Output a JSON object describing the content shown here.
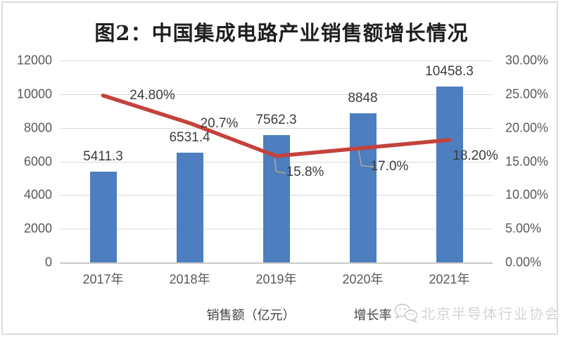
{
  "title": "图2：中国集成电路产业销售额增长情况",
  "chart_data": {
    "type": "bar",
    "title": "图2：中国集成电路产业销售额增长情况",
    "categories": [
      "2017年",
      "2018年",
      "2019年",
      "2020年",
      "2021年"
    ],
    "series": [
      {
        "name": "销售额（亿元）",
        "type": "bar",
        "color": "#4d7ebf",
        "values": [
          5411.3,
          6531.4,
          7562.3,
          8848,
          10458.3
        ],
        "labels": [
          "5411.3",
          "6531.4",
          "7562.3",
          "8848",
          "10458.3"
        ]
      },
      {
        "name": "增长率",
        "type": "line",
        "color": "#c4423c",
        "values": [
          24.8,
          20.7,
          15.8,
          17.0,
          18.2
        ],
        "labels": [
          "24.80%",
          "20.7%",
          "15.8%",
          "17.0%",
          "18.20%"
        ]
      }
    ],
    "left_axis": {
      "min": 0,
      "max": 12000,
      "ticks": [
        "12000",
        "10000",
        "8000",
        "6000",
        "4000",
        "2000",
        "0"
      ]
    },
    "right_axis": {
      "min": 0,
      "max": 30,
      "ticks": [
        "30.00%",
        "25.00%",
        "20.00%",
        "15.00%",
        "10.00%",
        "5.00%",
        "0.00%"
      ]
    },
    "grid": true,
    "legend_position": "bottom"
  },
  "legend": {
    "bar_label": "销售额（亿元）",
    "line_label": "增长率"
  },
  "watermark": {
    "label": "北京半导体行业协会",
    "icon": "wechat-icon"
  },
  "colors": {
    "bar": "#4d7ebf",
    "line": "#c4423c",
    "grid": "#d9d9d9",
    "axis": "#c9c9c9",
    "tick_text": "#595959",
    "label_text": "#3d3d3d",
    "leader": "#b4a88f",
    "watermark_text": "#d4d4d4"
  }
}
